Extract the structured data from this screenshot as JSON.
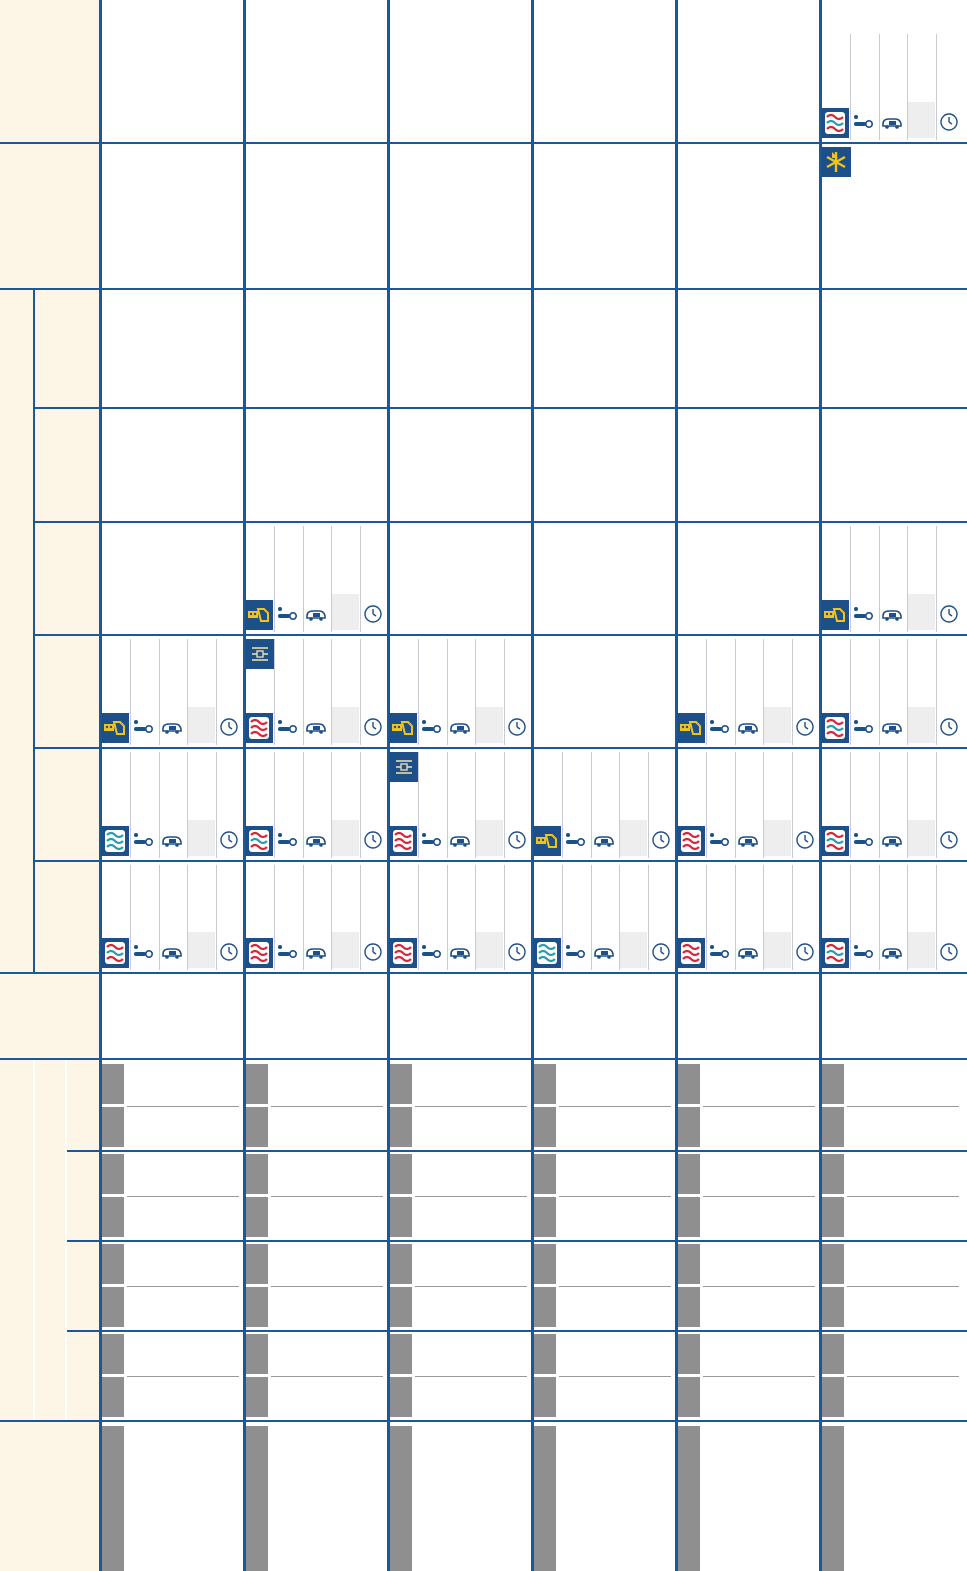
{
  "colors": {
    "grid_line": "#1c5796",
    "label_bg": "#fdf6e6",
    "icon_bg": "#1d4f89",
    "placeholder_bar": "#8f8f8f",
    "wave_red": "#d9263a",
    "wave_teal": "#2a9bb0",
    "accent_yellow": "#f2c318"
  },
  "icon_legend": {
    "wave_red": "wave-red-icon",
    "wave_teal": "wave-teal-icon",
    "wave_mixed": "wave-mixed-icon",
    "gun": "gun-icon",
    "adjust": "adjust-icon",
    "flash": "flash-icon",
    "probe": "probe-icon",
    "car": "car-icon",
    "clock": "clock-icon"
  },
  "schedule": [
    {
      "row": 0,
      "col": 5,
      "panel": "wave_mixed"
    },
    {
      "row": 1,
      "col": 5,
      "badge": "flash"
    },
    {
      "row": 4,
      "col": 1,
      "panel": "gun"
    },
    {
      "row": 4,
      "col": 5,
      "panel": "gun"
    },
    {
      "row": 5,
      "col": 0,
      "panel": "gun"
    },
    {
      "row": 5,
      "col": 1,
      "panel": "wave_red",
      "badge": "adjust"
    },
    {
      "row": 5,
      "col": 2,
      "panel": "gun"
    },
    {
      "row": 5,
      "col": 4,
      "panel": "gun"
    },
    {
      "row": 5,
      "col": 5,
      "panel": "wave_mixed"
    },
    {
      "row": 6,
      "col": 0,
      "panel": "wave_teal"
    },
    {
      "row": 6,
      "col": 1,
      "panel": "wave_mixed"
    },
    {
      "row": 6,
      "col": 2,
      "panel": "wave_red",
      "badge": "adjust"
    },
    {
      "row": 6,
      "col": 3,
      "panel": "gun"
    },
    {
      "row": 6,
      "col": 4,
      "panel": "wave_red"
    },
    {
      "row": 6,
      "col": 5,
      "panel": "wave_mixed"
    },
    {
      "row": 7,
      "col": 0,
      "panel": "wave_mixed"
    },
    {
      "row": 7,
      "col": 1,
      "panel": "wave_red"
    },
    {
      "row": 7,
      "col": 2,
      "panel": "wave_red"
    },
    {
      "row": 7,
      "col": 3,
      "panel": "wave_teal"
    },
    {
      "row": 7,
      "col": 4,
      "panel": "wave_red"
    },
    {
      "row": 7,
      "col": 5,
      "panel": "wave_mixed"
    }
  ],
  "slot_groups": {
    "count": 4,
    "slots_per_group": 2,
    "bottom_block": 1
  }
}
